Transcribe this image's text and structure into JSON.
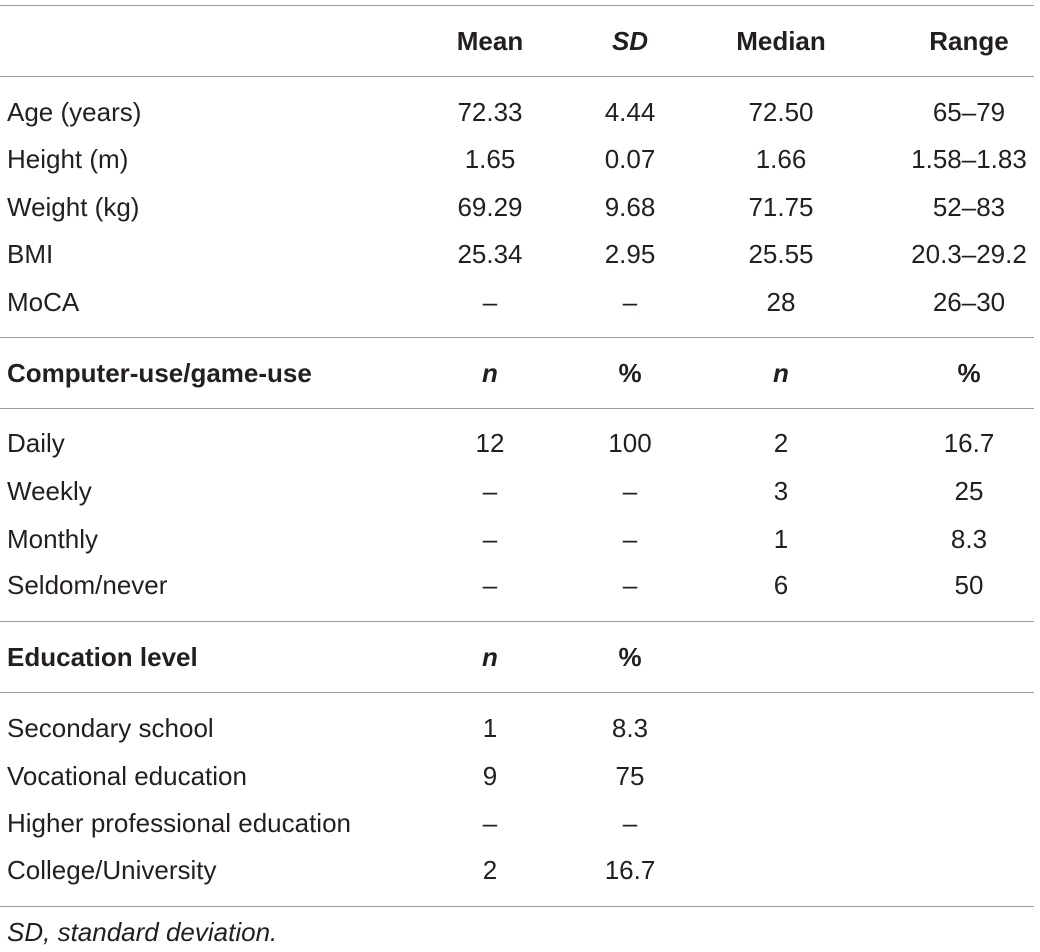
{
  "header": {
    "c1": "Mean",
    "c2": "SD",
    "c3": "Median",
    "c4": "Range"
  },
  "descriptives": [
    {
      "label": "Age (years)",
      "mean": "72.33",
      "sd": "4.44",
      "median": "72.50",
      "range": "65–79"
    },
    {
      "label": "Height (m)",
      "mean": "1.65",
      "sd": "0.07",
      "median": "1.66",
      "range": "1.58–1.83"
    },
    {
      "label": "Weight (kg)",
      "mean": "69.29",
      "sd": "9.68",
      "median": "71.75",
      "range": "52–83"
    },
    {
      "label": "BMI",
      "mean": "25.34",
      "sd": "2.95",
      "median": "25.55",
      "range": "20.3–29.2"
    },
    {
      "label": "MoCA",
      "mean": "–",
      "sd": "–",
      "median": "28",
      "range": "26–30"
    }
  ],
  "computer_section": {
    "title": "Computer-use/game-use",
    "c1": "n",
    "c2": "%",
    "c3": "n",
    "c4": "%",
    "rows": [
      {
        "label": "Daily",
        "v1": "12",
        "v2": "100",
        "v3": "2",
        "v4": "16.7"
      },
      {
        "label": "Weekly",
        "v1": "–",
        "v2": "–",
        "v3": "3",
        "v4": "25"
      },
      {
        "label": "Monthly",
        "v1": "–",
        "v2": "–",
        "v3": "1",
        "v4": "8.3"
      },
      {
        "label": "Seldom/never",
        "v1": "–",
        "v2": "–",
        "v3": "6",
        "v4": "50"
      }
    ]
  },
  "education_section": {
    "title": "Education level",
    "c1": "n",
    "c2": "%",
    "rows": [
      {
        "label": "Secondary school",
        "v1": "1",
        "v2": "8.3"
      },
      {
        "label": "Vocational education",
        "v1": "9",
        "v2": "75"
      },
      {
        "label": "Higher professional education",
        "v1": "–",
        "v2": "–"
      },
      {
        "label": "College/University",
        "v1": "2",
        "v2": "16.7"
      }
    ]
  },
  "footnote": "SD, standard deviation."
}
